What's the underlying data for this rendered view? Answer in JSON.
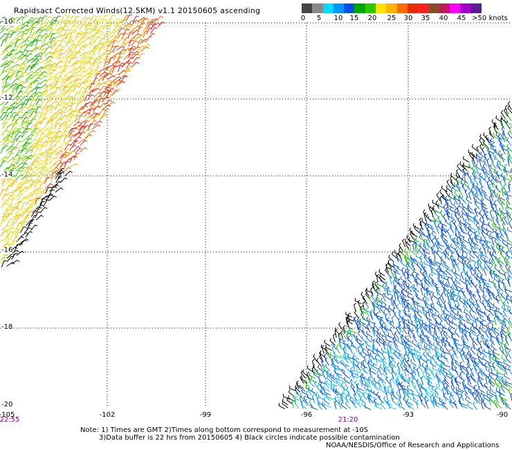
{
  "title": "Rapidsact Corrected Winds(12.5KM) v1.1 20150605 ascending",
  "legend": {
    "colors": [
      "#444444",
      "#888888",
      "#00dcff",
      "#0096ff",
      "#0050e6",
      "#00a800",
      "#2cc800",
      "#ffe100",
      "#ffb300",
      "#ff6a00",
      "#e82a00",
      "#ff1e1e",
      "#8b4a2a",
      "#c0185a",
      "#ff00ff",
      "#a000c8",
      "#5a1e8c"
    ],
    "labels": [
      "0",
      "5",
      "10",
      "15",
      "20",
      "25",
      "30",
      "35",
      "40",
      "45",
      ">50 knots"
    ]
  },
  "axes": {
    "lat_labels": [
      "-10",
      "-12",
      "-14",
      "-16",
      "-18",
      "-20"
    ],
    "lon_labels": [
      "-105",
      "-102",
      "-99",
      "-96",
      "-93",
      "-90"
    ]
  },
  "times": {
    "left": "22:55",
    "center": "21:20"
  },
  "notes": {
    "line1": "Note: 1) Times are GMT 2)Times along bottom correspond to measurement at -10S",
    "line2": "3)Data buffer is 22 hrs from 20150605 4) Black circles indicate possible contamination",
    "credit": "NOAA/NESDIS/Office of Research and Applications"
  }
}
